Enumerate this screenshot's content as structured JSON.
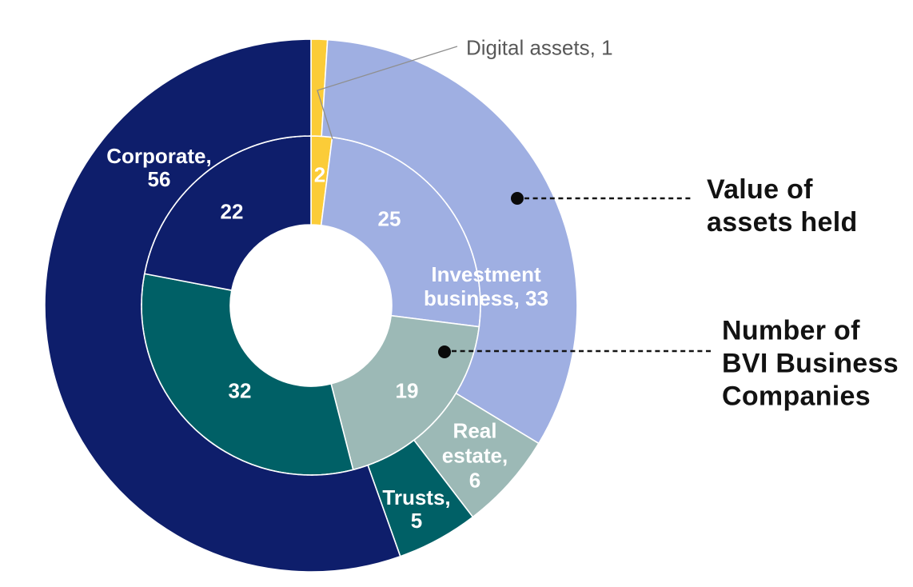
{
  "chart_data": {
    "type": "donut",
    "subtype": "nested-two-ring",
    "categories": [
      "Digital assets",
      "Investment business",
      "Real estate",
      "Trusts",
      "Corporate"
    ],
    "colors": [
      "#fbcc38",
      "#9fafe2",
      "#9cb9b6",
      "#006066",
      "#0e1e6b"
    ],
    "series": [
      {
        "name": "Number of BVI Business Companies",
        "ring": "inner",
        "values": [
          2,
          25,
          19,
          32,
          22
        ],
        "total": 100
      },
      {
        "name": "Value of assets held",
        "ring": "outer",
        "values": [
          1,
          33,
          6,
          5,
          56
        ],
        "total": 101
      }
    ],
    "segment_labels": {
      "inner": [
        "2",
        "25",
        "19",
        "32",
        "22"
      ],
      "outer_lines": {
        "investment": [
          "Investment",
          "business, 33"
        ],
        "real_estate": [
          "Real",
          "estate,",
          "6"
        ],
        "trusts": [
          "Trusts,",
          "5"
        ],
        "corporate": [
          "Corporate,",
          "56"
        ]
      }
    },
    "annotations": {
      "digital_assets_label": "Digital assets, 1",
      "ring_callouts": [
        {
          "target": "outer-ring",
          "lines": [
            "Value of",
            "assets held"
          ]
        },
        {
          "target": "inner-ring",
          "lines": [
            "Number of",
            "BVI Business",
            "Companies"
          ]
        }
      ]
    },
    "layout_hints": {
      "legend": "none",
      "start_angle_deg": 0,
      "direction": "clockwise",
      "label_color_on_segments": "#ffffff",
      "callout_text_color": "#121212",
      "gray_callout_text_color": "#595959",
      "segment_border_color": "#ffffff",
      "ring_divider_style": "dashed-white"
    }
  }
}
